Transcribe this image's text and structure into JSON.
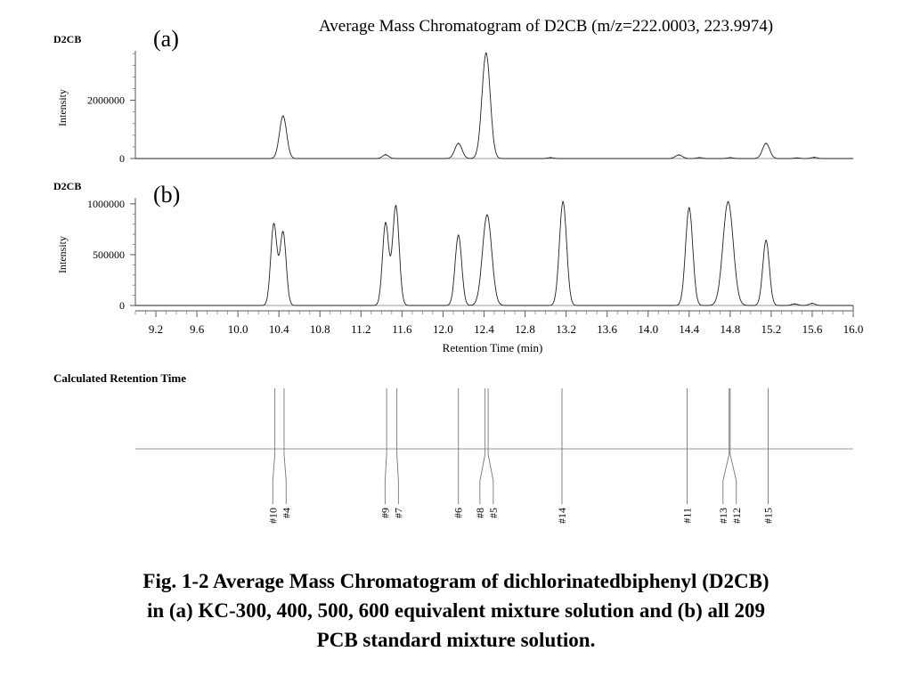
{
  "title": "Average Mass Chromatogram of D2CB (m/z=222.0003, 223.9974)",
  "caption": [
    "Fig. 1-2  Average Mass Chromatogram of dichlorinatedbiphenyl (D2CB)",
    "in (a) KC-300, 400, 500, 600 equivalent mixture solution and (b) all 209",
    "PCB standard mixture solution."
  ],
  "chart_data": [
    {
      "type": "line",
      "panel_label": "(a)",
      "compound_label": "D2CB",
      "ylabel": "Intensity",
      "xlim": [
        9.0,
        16.0
      ],
      "ylim": [
        0,
        3700000
      ],
      "yticks": [
        0,
        2000000
      ],
      "ytick_labels": [
        "0",
        "2000000"
      ],
      "peaks": [
        {
          "rt": 10.44,
          "height": 1460000,
          "width": 0.035
        },
        {
          "rt": 11.44,
          "height": 130000,
          "width": 0.03
        },
        {
          "rt": 12.15,
          "height": 520000,
          "width": 0.035
        },
        {
          "rt": 12.42,
          "height": 3620000,
          "width": 0.04
        },
        {
          "rt": 13.05,
          "height": 30000,
          "width": 0.03
        },
        {
          "rt": 14.3,
          "height": 120000,
          "width": 0.035
        },
        {
          "rt": 14.5,
          "height": 30000,
          "width": 0.03
        },
        {
          "rt": 14.8,
          "height": 30000,
          "width": 0.03
        },
        {
          "rt": 15.15,
          "height": 520000,
          "width": 0.035
        },
        {
          "rt": 15.45,
          "height": 20000,
          "width": 0.03
        },
        {
          "rt": 15.62,
          "height": 40000,
          "width": 0.03
        }
      ]
    },
    {
      "type": "line",
      "panel_label": "(b)",
      "compound_label": "D2CB",
      "ylabel": "Intensity",
      "xlabel": "Retention Time (min)",
      "xlim": [
        9.0,
        16.0
      ],
      "ylim": [
        0,
        1060000
      ],
      "yticks": [
        0,
        500000,
        1000000
      ],
      "ytick_labels": [
        "0",
        "500000",
        "1000000"
      ],
      "xticks": [
        9.2,
        9.6,
        10.0,
        10.4,
        10.8,
        11.2,
        11.6,
        12.0,
        12.4,
        12.8,
        13.2,
        13.6,
        14.0,
        14.4,
        14.8,
        15.2,
        15.6,
        16.0
      ],
      "xtick_labels": [
        "9.2",
        "9.6",
        "10.0",
        "10.4",
        "10.8",
        "11.2",
        "11.6",
        "12.0",
        "12.4",
        "12.8",
        "13.2",
        "13.6",
        "14.0",
        "14.4",
        "14.8",
        "15.2",
        "15.6",
        "16.0"
      ],
      "peaks": [
        {
          "rt": 10.35,
          "height": 800000,
          "width": 0.03
        },
        {
          "rt": 10.44,
          "height": 720000,
          "width": 0.03
        },
        {
          "rt": 11.44,
          "height": 810000,
          "width": 0.03
        },
        {
          "rt": 11.54,
          "height": 980000,
          "width": 0.032
        },
        {
          "rt": 12.15,
          "height": 690000,
          "width": 0.032
        },
        {
          "rt": 12.43,
          "height": 890000,
          "width": 0.045
        },
        {
          "rt": 13.17,
          "height": 1020000,
          "width": 0.035
        },
        {
          "rt": 14.4,
          "height": 960000,
          "width": 0.035
        },
        {
          "rt": 14.78,
          "height": 1020000,
          "width": 0.05
        },
        {
          "rt": 15.15,
          "height": 640000,
          "width": 0.032
        },
        {
          "rt": 15.43,
          "height": 15000,
          "width": 0.03
        },
        {
          "rt": 15.6,
          "height": 20000,
          "width": 0.03
        }
      ]
    },
    {
      "type": "scatter",
      "name": "Calculated Retention Time",
      "xlim": [
        9.0,
        16.0
      ],
      "markers": [
        {
          "label": "#10",
          "rt": 10.36
        },
        {
          "label": "#4",
          "rt": 10.45
        },
        {
          "label": "#9",
          "rt": 11.45
        },
        {
          "label": "#7",
          "rt": 11.55
        },
        {
          "label": "#6",
          "rt": 12.15
        },
        {
          "label": "#8",
          "rt": 12.41
        },
        {
          "label": "#5",
          "rt": 12.44
        },
        {
          "label": "#14",
          "rt": 13.16
        },
        {
          "label": "#11",
          "rt": 14.38
        },
        {
          "label": "#13",
          "rt": 14.79
        },
        {
          "label": "#12",
          "rt": 14.8
        },
        {
          "label": "#15",
          "rt": 15.17
        }
      ]
    }
  ]
}
